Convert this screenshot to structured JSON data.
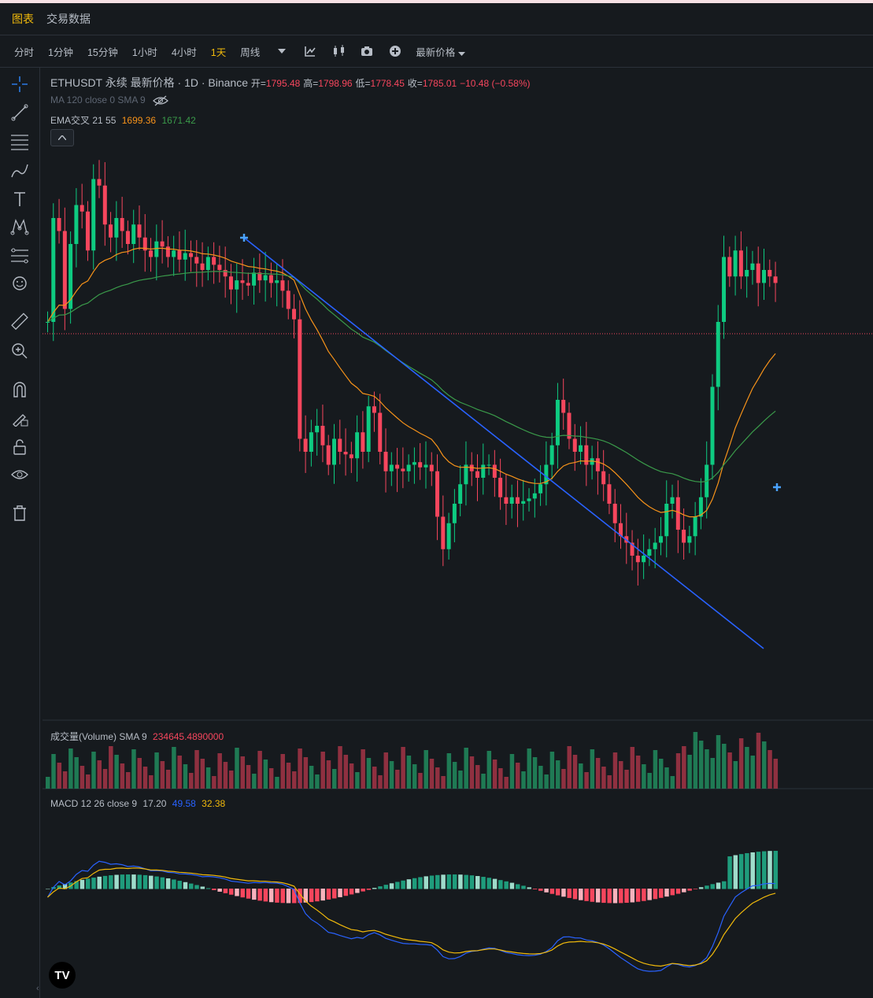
{
  "tabs": {
    "chart": "图表",
    "trade_data": "交易数据"
  },
  "toolbar": {
    "intervals": [
      "分时",
      "1分钟",
      "15分钟",
      "1小时",
      "4小时",
      "1天",
      "周线"
    ],
    "active_interval": "1天",
    "price_type": "最新价格"
  },
  "legend": {
    "symbol": "ETHUSDT 永续 最新价格 · 1D · Binance",
    "open_label": "开=",
    "open": "1795.48",
    "high_label": "高=",
    "high": "1798.96",
    "low_label": "低=",
    "low": "1778.45",
    "close_label": "收=",
    "close": "1785.01",
    "change": "−10.48 (−0.58%)",
    "ma_line": "MA 120 close 0 SMA 9",
    "ema_label": "EMA交叉 21 55",
    "ema_fast": "1699.36",
    "ema_slow": "1671.42"
  },
  "volume": {
    "label": "成交量(Volume) SMA 9",
    "value": "234645.4890000"
  },
  "macd": {
    "label": "MACD 12 26 close 9",
    "hist": "17.20",
    "macd": "49.58",
    "signal": "32.38"
  },
  "colors": {
    "up": "#0ecb81",
    "down": "#f6465d",
    "ema_fast": "#f7931a",
    "ema_slow": "#3a9a4a",
    "trend": "#2962ff",
    "macd": "#2962ff",
    "signal": "#f0b90b",
    "accent": "#f0b90b"
  },
  "icons": [
    "crosshair-icon",
    "trendline-icon",
    "fib-icon",
    "brush-icon",
    "text-icon",
    "pattern-icon",
    "forecast-icon",
    "emoji-icon",
    "ruler-icon",
    "zoom-in-icon",
    "magnet-icon",
    "lock-drawing-icon",
    "unlock-icon",
    "eye-icon",
    "trash-icon"
  ]
}
